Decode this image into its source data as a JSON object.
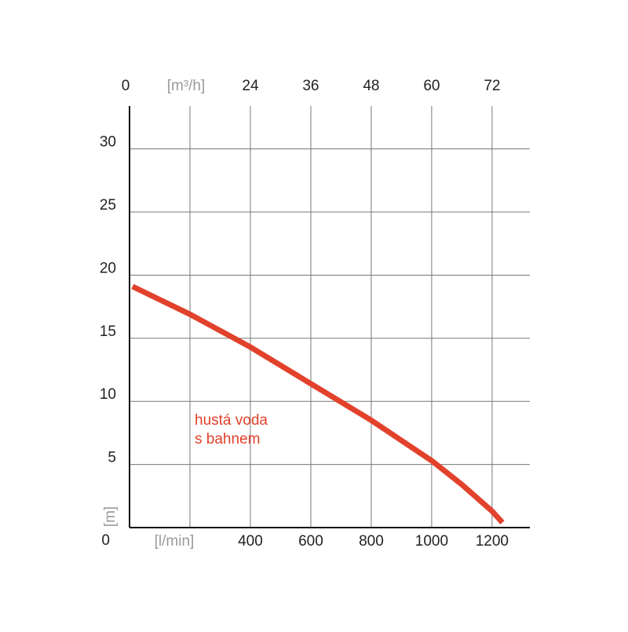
{
  "chart_data": {
    "type": "line",
    "x": [
      10,
      200,
      400,
      600,
      800,
      1000,
      1100,
      1200,
      1234
    ],
    "values": [
      19.1,
      16.9,
      14.3,
      11.4,
      8.5,
      5.3,
      3.4,
      1.3,
      0.4
    ],
    "color": "#e2412b",
    "annotation": [
      "hustá voda",
      "s bahnem"
    ],
    "ylabel": "[m]",
    "xlim": [
      0,
      1325
    ],
    "xticks": [
      {
        "value": 200,
        "label": "[l/min]"
      },
      400,
      600,
      800,
      1000,
      1200
    ],
    "x2lim": [
      0,
      79.5
    ],
    "x2ticks": [
      0,
      {
        "value": 12,
        "label": "[m³/h]"
      },
      24,
      36,
      48,
      60,
      72
    ],
    "ylim": [
      0,
      33.4
    ],
    "yticks": [
      0,
      5,
      10,
      15,
      20,
      25,
      30
    ],
    "grid": true
  }
}
